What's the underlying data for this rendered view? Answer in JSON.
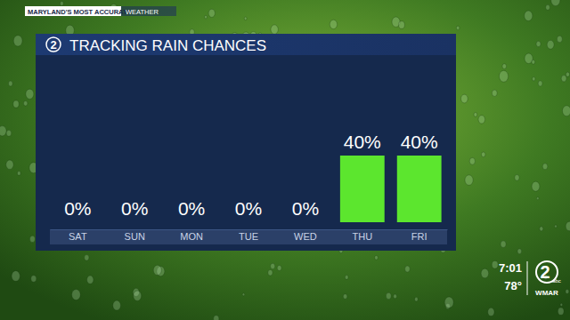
{
  "chart_data": {
    "type": "bar",
    "title": "TRACKING RAIN CHANCES",
    "categories": [
      "SAT",
      "SUN",
      "MON",
      "TUE",
      "WED",
      "THU",
      "FRI"
    ],
    "values": [
      0,
      0,
      0,
      0,
      0,
      40,
      40
    ],
    "value_labels": [
      "0%",
      "0%",
      "0%",
      "0%",
      "0%",
      "40%",
      "40%"
    ],
    "color": "#5ce62e",
    "ylim": [
      0,
      40
    ],
    "data_labels": true,
    "tick_labels": "x",
    "annotations": [
      "MARYLAND'S MOST ACCURATE",
      "WEATHER",
      "2",
      "7:01",
      "78°",
      "abc",
      "WMAR"
    ]
  }
}
